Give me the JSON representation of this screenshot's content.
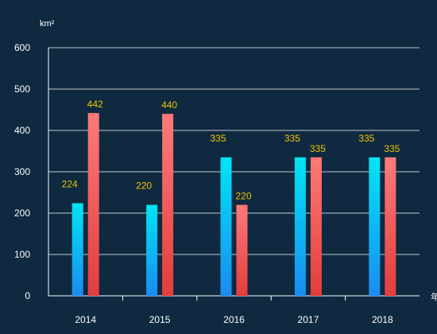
{
  "chart_data": {
    "type": "bar",
    "title": "",
    "xlabel": "年",
    "ylabel": "km²",
    "categories": [
      "2014",
      "2015",
      "2016",
      "2017",
      "2018"
    ],
    "series": [
      {
        "values": [
          224,
          220,
          335,
          335,
          335
        ],
        "color_top": "#00e5f5",
        "color_bottom": "#1a8cf0"
      },
      {
        "values": [
          442,
          440,
          220,
          335,
          335
        ],
        "color_top": "#ff7a78",
        "color_bottom": "#e23d3d"
      }
    ],
    "ylim": [
      0,
      600
    ],
    "yticks": [
      "0",
      "100",
      "200",
      "300",
      "400",
      "500",
      "600"
    ],
    "grid": true,
    "legend": "none",
    "data_label_color": "#f5c400",
    "background": "#0e2940"
  }
}
